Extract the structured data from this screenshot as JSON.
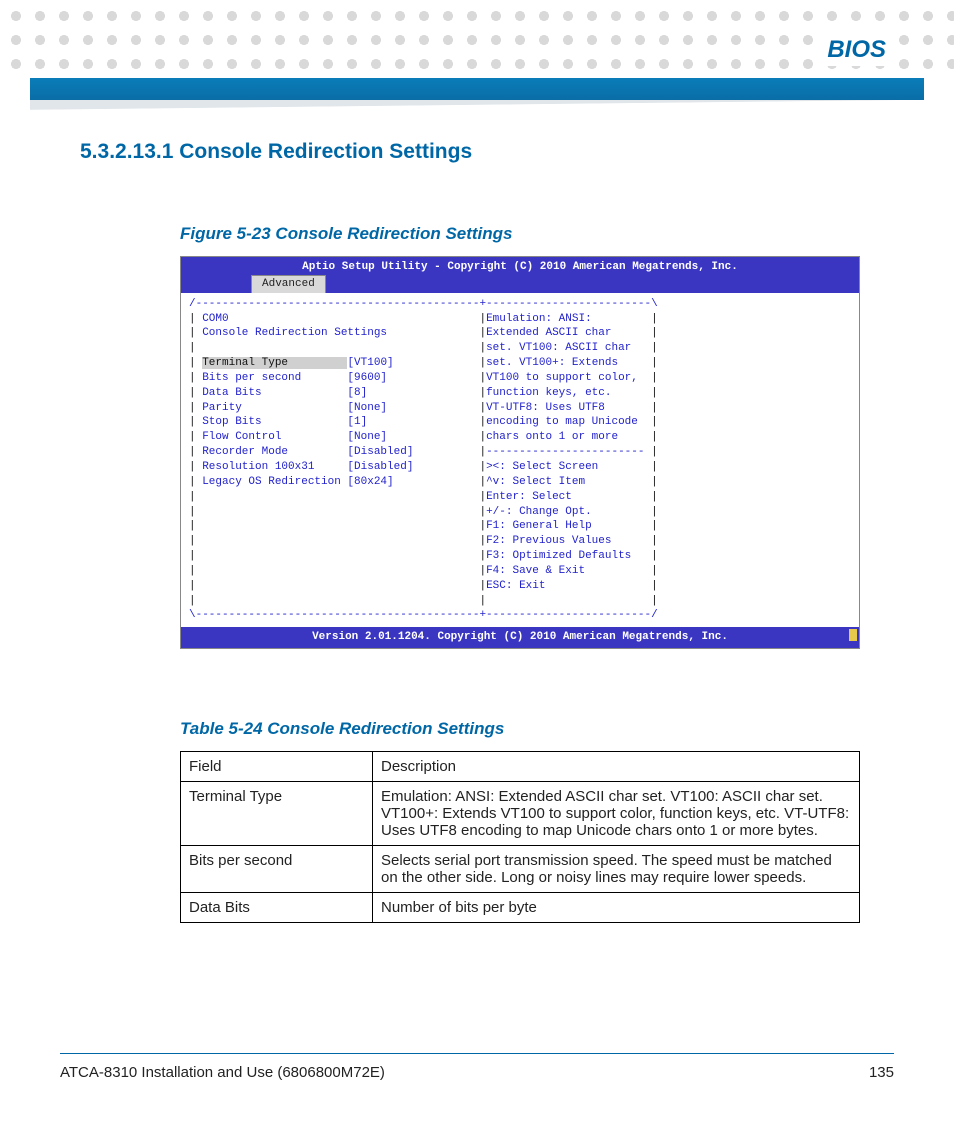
{
  "header": {
    "section_name": "BIOS"
  },
  "section": {
    "heading": "5.3.2.13.1 Console Redirection Settings"
  },
  "figure": {
    "caption": "Figure 5-23    Console Redirection Settings",
    "bios_header": "Aptio Setup Utility - Copyright (C) 2010 American Megatrends, Inc.",
    "bios_tab": "Advanced",
    "bios_footer": "Version 2.01.1204. Copyright (C) 2010 American Megatrends, Inc.",
    "colors": {
      "header_bg": "#3a36c2",
      "header_fg": "#ffffff",
      "body_bg": "#ffffff",
      "body_fg": "#2222cc",
      "tab_bg": "#d9d9d9"
    },
    "left_col": {
      "title1": "COM0",
      "title2": "Console Redirection Settings",
      "rows": [
        {
          "label": "Terminal Type",
          "value": "[VT100]",
          "selected": true
        },
        {
          "label": "Bits per second",
          "value": "[9600]"
        },
        {
          "label": "Data Bits",
          "value": "[8]"
        },
        {
          "label": "Parity",
          "value": "[None]"
        },
        {
          "label": "Stop Bits",
          "value": "[1]"
        },
        {
          "label": "Flow Control",
          "value": "[None]"
        },
        {
          "label": "Recorder Mode",
          "value": "[Disabled]"
        },
        {
          "label": "Resolution 100x31",
          "value": "[Disabled]"
        },
        {
          "label": "Legacy OS Redirection",
          "value": "[80x24]"
        }
      ]
    },
    "right_col": {
      "help": [
        "Emulation: ANSI:",
        "Extended ASCII char",
        "set. VT100: ASCII char",
        "set. VT100+: Extends",
        "VT100 to support color,",
        "function keys, etc.",
        "VT-UTF8: Uses UTF8",
        "encoding to map Unicode",
        "chars onto 1 or more"
      ],
      "nav": [
        "><: Select Screen",
        "^v: Select Item",
        "Enter: Select",
        "+/-: Change Opt.",
        "F1: General Help",
        "F2: Previous Values",
        "F3: Optimized Defaults",
        "F4: Save & Exit",
        "ESC: Exit"
      ]
    }
  },
  "table": {
    "caption": "Table 5-24 Console Redirection Settings",
    "columns": [
      "Field",
      "Description"
    ],
    "rows": [
      [
        "Terminal Type",
        "Emulation: ANSI: Extended ASCII char set. VT100: ASCII char set. VT100+: Extends VT100 to support color, function keys, etc. VT-UTF8: Uses UTF8 encoding to map Unicode chars onto 1 or more bytes."
      ],
      [
        "Bits per second",
        "Selects serial port transmission speed. The speed must be matched on the other side. Long or noisy lines may require lower speeds."
      ],
      [
        "Data Bits",
        "Number of bits per byte"
      ]
    ]
  },
  "footer": {
    "doc": "ATCA-8310 Installation and Use (6806800M72E)",
    "page": "135"
  }
}
